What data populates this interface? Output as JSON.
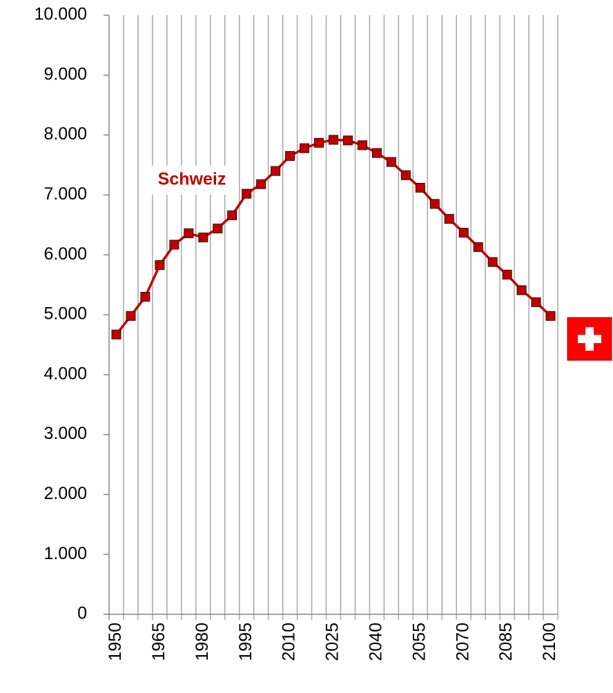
{
  "chart_data": {
    "type": "line",
    "annotation": "Schweiz",
    "categories": [
      "1950",
      null,
      null,
      "1965",
      null,
      null,
      "1980",
      null,
      null,
      "1995",
      null,
      null,
      "2010",
      null,
      null,
      "2025",
      null,
      null,
      "2040",
      null,
      null,
      "2055",
      null,
      null,
      "2070",
      null,
      null,
      "2085",
      null,
      null,
      "2100"
    ],
    "series": [
      {
        "color": "#c00000",
        "values": [
          4670,
          4980,
          5300,
          5830,
          6170,
          6360,
          6290,
          6440,
          6660,
          7020,
          7180,
          7400,
          7650,
          7780,
          7870,
          7920,
          7910,
          7830,
          7700,
          7550,
          7330,
          7120,
          6850,
          6600,
          6370,
          6130,
          5880,
          5670,
          5410,
          5210,
          4980
        ]
      }
    ],
    "ylim": [
      0,
      10000
    ],
    "yticks": [
      0,
      {
        "value": 1000,
        "label": "1.000"
      },
      {
        "value": 2000,
        "label": "2.000"
      },
      {
        "value": 3000,
        "label": "3.000"
      },
      {
        "value": 4000,
        "label": "4.000"
      },
      {
        "value": 5000,
        "label": "5.000"
      },
      {
        "value": 6000,
        "label": "6.000"
      },
      {
        "value": 7000,
        "label": "7.000"
      },
      {
        "value": 8000,
        "label": "8.000"
      },
      {
        "value": 9000,
        "label": "9.000"
      },
      {
        "value": 10000,
        "label": "10.000"
      }
    ],
    "grid": true
  }
}
